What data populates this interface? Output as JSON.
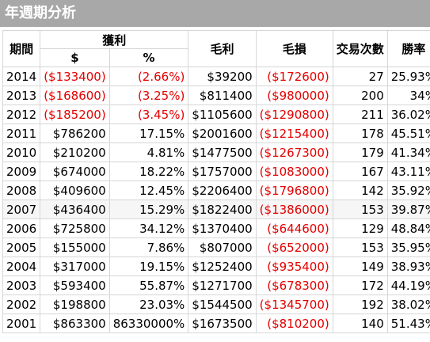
{
  "window": {
    "title": "年週期分析"
  },
  "columns": {
    "period": "期間",
    "profit_group": "獲利",
    "profit_dollar": "$",
    "profit_percent": "%",
    "gross_profit": "毛利",
    "gross_loss": "毛損",
    "trades": "交易次數",
    "win_rate": "勝率"
  },
  "rows": [
    {
      "period": "2014",
      "profit_dollar": "($133400)",
      "profit_percent": "(2.66%)",
      "gross_profit": "$39200",
      "gross_loss": "($172600)",
      "trades": "27",
      "win_rate": "25.93%"
    },
    {
      "period": "2013",
      "profit_dollar": "($168600)",
      "profit_percent": "(3.25%)",
      "gross_profit": "$811400",
      "gross_loss": "($980000)",
      "trades": "200",
      "win_rate": "34%"
    },
    {
      "period": "2012",
      "profit_dollar": "($185200)",
      "profit_percent": "(3.45%)",
      "gross_profit": "$1105600",
      "gross_loss": "($1290800)",
      "trades": "211",
      "win_rate": "36.02%"
    },
    {
      "period": "2011",
      "profit_dollar": "$786200",
      "profit_percent": "17.15%",
      "gross_profit": "$2001600",
      "gross_loss": "($1215400)",
      "trades": "178",
      "win_rate": "45.51%"
    },
    {
      "period": "2010",
      "profit_dollar": "$210200",
      "profit_percent": "4.81%",
      "gross_profit": "$1477500",
      "gross_loss": "($1267300)",
      "trades": "179",
      "win_rate": "41.34%"
    },
    {
      "period": "2009",
      "profit_dollar": "$674000",
      "profit_percent": "18.22%",
      "gross_profit": "$1757000",
      "gross_loss": "($1083000)",
      "trades": "167",
      "win_rate": "43.11%"
    },
    {
      "period": "2008",
      "profit_dollar": "$409600",
      "profit_percent": "12.45%",
      "gross_profit": "$2206400",
      "gross_loss": "($1796800)",
      "trades": "142",
      "win_rate": "35.92%"
    },
    {
      "period": "2007",
      "profit_dollar": "$436400",
      "profit_percent": "15.29%",
      "gross_profit": "$1822400",
      "gross_loss": "($1386000)",
      "trades": "153",
      "win_rate": "39.87%"
    },
    {
      "period": "2006",
      "profit_dollar": "$725800",
      "profit_percent": "34.12%",
      "gross_profit": "$1370400",
      "gross_loss": "($644600)",
      "trades": "129",
      "win_rate": "48.84%"
    },
    {
      "period": "2005",
      "profit_dollar": "$155000",
      "profit_percent": "7.86%",
      "gross_profit": "$807000",
      "gross_loss": "($652000)",
      "trades": "153",
      "win_rate": "35.95%"
    },
    {
      "period": "2004",
      "profit_dollar": "$317000",
      "profit_percent": "19.15%",
      "gross_profit": "$1252400",
      "gross_loss": "($935400)",
      "trades": "149",
      "win_rate": "38.93%"
    },
    {
      "period": "2003",
      "profit_dollar": "$593400",
      "profit_percent": "55.87%",
      "gross_profit": "$1271700",
      "gross_loss": "($678300)",
      "trades": "172",
      "win_rate": "44.19%"
    },
    {
      "period": "2002",
      "profit_dollar": "$198800",
      "profit_percent": "23.03%",
      "gross_profit": "$1544500",
      "gross_loss": "($1345700)",
      "trades": "192",
      "win_rate": "38.02%"
    },
    {
      "period": "2001",
      "profit_dollar": "$863300",
      "profit_percent": "86330000%",
      "gross_profit": "$1673500",
      "gross_loss": "($810200)",
      "trades": "140",
      "win_rate": "51.43%"
    }
  ],
  "highlighted_row": "2007",
  "colors": {
    "title_bar_bg": "#a8a8a8",
    "title_text": "#ffffff",
    "negative": "#e60000",
    "grid": "#d6d6d6"
  }
}
